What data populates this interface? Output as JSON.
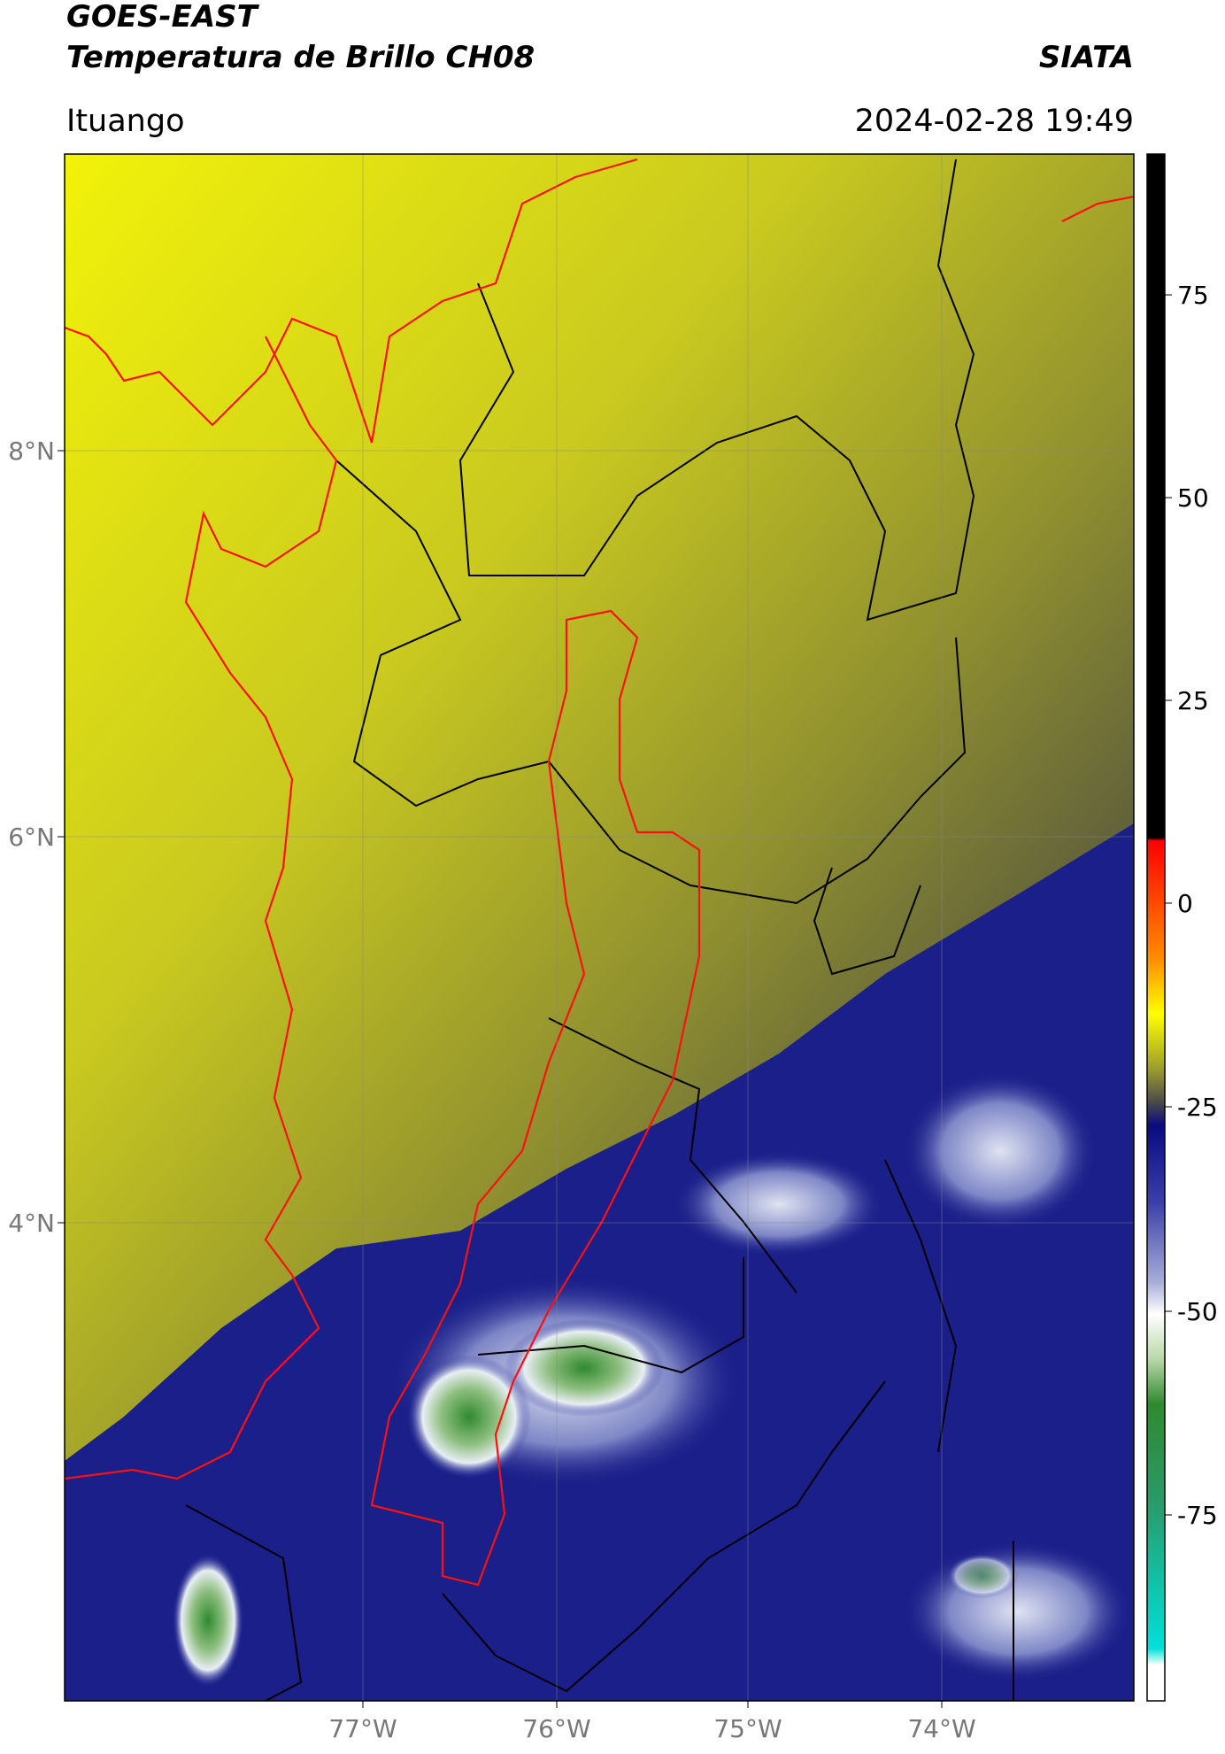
{
  "header": {
    "title": "GOES-EAST",
    "subtitle": "Temperatura de Brillo CH08",
    "source": "SIATA",
    "location": "Ituango",
    "datetime": "2024-02-28 19:49"
  },
  "map": {
    "lat_ticks": [
      "8°N",
      "6°N",
      "4°N"
    ],
    "lon_ticks": [
      "77°W",
      "76°W",
      "75°W",
      "74°W"
    ]
  },
  "colorbar": {
    "ticks": [
      "75",
      "50",
      "25",
      "0",
      "-25",
      "-50",
      "-75"
    ]
  }
}
